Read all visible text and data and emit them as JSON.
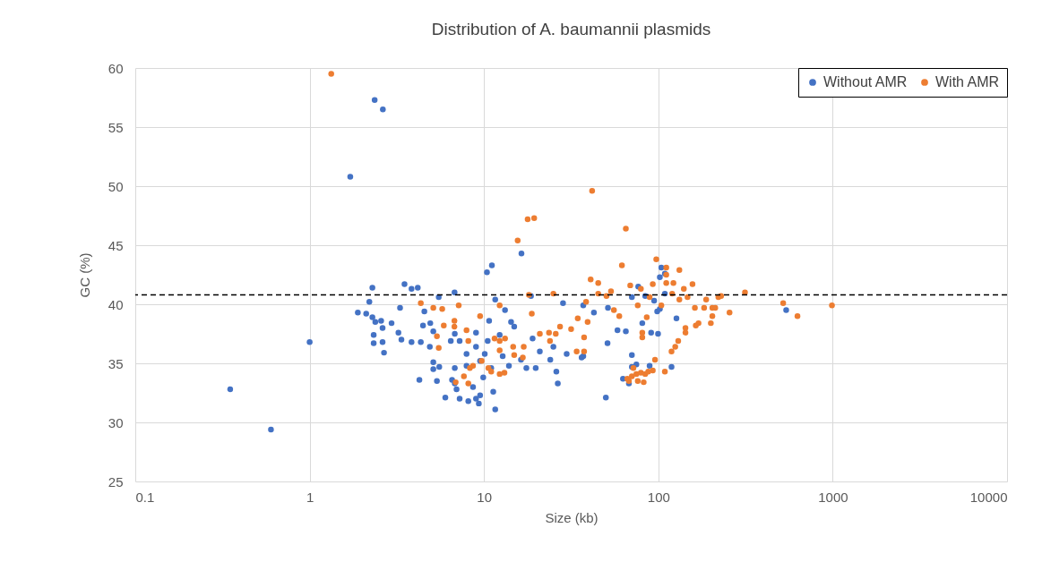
{
  "chart_data": {
    "type": "scatter",
    "title": "Distribution of A. baumannii plasmids",
    "xlabel": "Size (kb)",
    "ylabel": "GC (%)",
    "log": "x",
    "grid": true,
    "legend": "top right",
    "marker": "circle",
    "xlim": [
      0.1,
      10000
    ],
    "xticks": [
      0.1,
      1,
      10,
      100,
      1000,
      10000
    ],
    "ylim": [
      25,
      60
    ],
    "yticks": [
      25,
      30,
      35,
      40,
      45,
      50,
      55,
      60
    ],
    "ref_lines": [
      {
        "axis": "y",
        "value": 40.8,
        "color": "#000000",
        "line_style": "dashed"
      }
    ],
    "series": [
      {
        "name": "Without AMR",
        "color": "#4472c4",
        "x": [
          0.35,
          0.6,
          1.0,
          1.71,
          2.36,
          2.63,
          2.29,
          2.2,
          1.89,
          2.11,
          2.29,
          2.38,
          2.57,
          2.62,
          2.33,
          2.33,
          2.62,
          2.67,
          2.95,
          3.3,
          3.5,
          3.84,
          4.17,
          3.23,
          3.36,
          3.84,
          4.34,
          4.26,
          5.37,
          5.5,
          4.55,
          4.47,
          4.92,
          5.12,
          4.89,
          5.12,
          5.54,
          5.12,
          6.0,
          6.78,
          11.1,
          10.4,
          16.4,
          11.6,
          13.2,
          10.7,
          14.3,
          14.9,
          9.0,
          10.5,
          12.3,
          6.8,
          6.45,
          7.25,
          7.94,
          9.0,
          10.1,
          9.5,
          7.94,
          6.8,
          11.0,
          12.8,
          13.9,
          16.3,
          17.5,
          19.8,
          20.9,
          19.0,
          25.0,
          24.0,
          26.0,
          26.5,
          29.8,
          28.4,
          37.1,
          37.1,
          42.7,
          6.56,
          6.96,
          7.25,
          8.13,
          9.0,
          9.5,
          9.34,
          11.3,
          11.6,
          8.65,
          9.9,
          6.8,
          18.6,
          36.3,
          104,
          102,
          109,
          109,
          76.7,
          70.5,
          84.1,
          94.6,
          98.5,
          102,
          51.4,
          127,
          80.9,
          58.3,
          65.1,
          90.9,
          99.6,
          51.1,
          70.5,
          74.8,
          70.5,
          119,
          89.1,
          62.7,
          67.8,
          50.0,
          541
        ],
        "values": [
          32.8,
          29.4,
          36.8,
          50.8,
          57.3,
          56.5,
          41.4,
          40.2,
          39.3,
          39.2,
          38.9,
          38.5,
          38.6,
          38.0,
          37.4,
          36.7,
          36.8,
          35.9,
          38.4,
          39.7,
          41.7,
          41.3,
          41.4,
          37.6,
          37.0,
          36.8,
          36.8,
          33.6,
          33.5,
          40.6,
          39.4,
          38.2,
          38.4,
          37.7,
          36.4,
          35.1,
          34.7,
          34.5,
          32.1,
          41.0,
          43.3,
          42.7,
          44.3,
          40.4,
          39.5,
          38.6,
          38.5,
          38.1,
          37.6,
          36.9,
          37.4,
          37.5,
          36.9,
          36.9,
          35.8,
          36.4,
          35.8,
          35.2,
          34.8,
          34.6,
          34.6,
          35.6,
          34.8,
          35.3,
          34.6,
          34.6,
          36.0,
          37.1,
          36.4,
          35.3,
          34.3,
          33.3,
          35.8,
          40.1,
          39.9,
          35.6,
          39.3,
          33.6,
          32.8,
          32.0,
          31.8,
          32.0,
          32.3,
          31.6,
          32.6,
          31.1,
          33.0,
          33.8,
          33.3,
          40.7,
          35.5,
          43.1,
          42.3,
          42.6,
          40.9,
          41.5,
          40.6,
          40.7,
          40.3,
          39.4,
          39.6,
          39.7,
          38.8,
          38.4,
          37.8,
          37.7,
          37.6,
          37.5,
          36.7,
          35.7,
          34.9,
          34.7,
          34.7,
          34.8,
          33.7,
          33.3,
          32.1,
          39.5
        ]
      },
      {
        "name": "With AMR",
        "color": "#ed7d31",
        "x": [
          1.33,
          4.34,
          5.12,
          5.76,
          5.88,
          5.37,
          5.5,
          41.7,
          17.8,
          19.4,
          15.6,
          18.1,
          25.0,
          18.8,
          12.3,
          9.5,
          7.16,
          6.77,
          6.77,
          7.94,
          8.13,
          11.5,
          12.3,
          13.2,
          12.3,
          14.7,
          14.9,
          16.9,
          16.7,
          9.7,
          8.65,
          8.3,
          7.67,
          6.88,
          8.13,
          10.6,
          11.0,
          12.3,
          13.1,
          20.9,
          23.6,
          25.8,
          23.9,
          27.3,
          31.6,
          34.5,
          37.5,
          39.3,
          34.0,
          37.5,
          40.9,
          45.2,
          45.2,
          38.5,
          65.1,
          61.8,
          97.3,
          132,
          111,
          111,
          111,
          69.0,
          92.9,
          122,
          157,
          140,
          79.4,
          53.5,
          50.4,
          120,
          314,
          221,
          229,
          188,
          147,
          132,
          89.1,
          76.2,
          104,
          162,
          183,
          204,
          212,
          256,
          520,
          628,
          55.6,
          59.7,
          85.8,
          204,
          200,
          170,
          164,
          143,
          143,
          130,
          125,
          119,
          80.9,
          80.9,
          95.7,
          109,
          92.9,
          66.4,
          70.5,
          74.8,
          79.4,
          84.1,
          87.5,
          76.2,
          82.4,
          71.9,
          67.8,
          990
        ],
        "values": [
          59.5,
          40.1,
          39.7,
          39.6,
          38.2,
          37.3,
          36.3,
          49.6,
          47.2,
          47.3,
          45.4,
          40.8,
          40.9,
          39.2,
          39.9,
          39.0,
          39.9,
          38.6,
          38.1,
          37.8,
          36.9,
          37.1,
          36.9,
          37.1,
          36.1,
          36.4,
          35.7,
          36.4,
          35.5,
          35.2,
          34.8,
          34.6,
          33.9,
          33.4,
          33.3,
          34.6,
          34.3,
          34.1,
          34.2,
          37.5,
          37.6,
          37.5,
          36.9,
          38.1,
          37.9,
          38.8,
          37.2,
          38.5,
          36.0,
          36.0,
          42.1,
          41.8,
          40.9,
          40.2,
          46.4,
          43.3,
          43.8,
          42.9,
          43.1,
          42.5,
          41.8,
          41.6,
          41.7,
          41.8,
          41.7,
          41.3,
          41.3,
          41.1,
          40.7,
          40.9,
          41.0,
          40.6,
          40.7,
          40.4,
          40.6,
          40.4,
          40.6,
          39.9,
          39.9,
          39.7,
          39.7,
          39.7,
          39.7,
          39.3,
          40.1,
          39.0,
          39.5,
          39.0,
          38.9,
          39.0,
          38.4,
          38.4,
          38.2,
          38.0,
          37.6,
          36.9,
          36.4,
          36.0,
          37.6,
          37.2,
          35.3,
          34.3,
          34.4,
          33.7,
          33.9,
          34.1,
          34.2,
          34.1,
          34.3,
          33.5,
          33.4,
          34.6,
          33.5,
          39.9
        ]
      }
    ]
  }
}
